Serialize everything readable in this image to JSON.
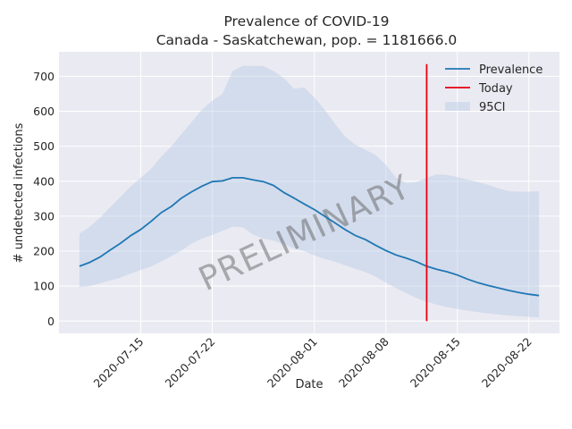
{
  "chart_data": {
    "type": "line",
    "title": "Prevalence of COVID-19",
    "subtitle": "Canada - Saskatchewan, pop. = 1181666.0",
    "xlabel": "Date",
    "ylabel": "# undetected infections",
    "x_start": "2020-07-09",
    "x_ticks": [
      "2020-07-15",
      "2020-07-22",
      "2020-08-01",
      "2020-08-08",
      "2020-08-15",
      "2020-08-22"
    ],
    "xlim": [
      "2020-07-07",
      "2020-08-25"
    ],
    "y_ticks": [
      0,
      100,
      200,
      300,
      400,
      500,
      600,
      700
    ],
    "ylim": [
      -35,
      770
    ],
    "grid": true,
    "legend_position": "top-right",
    "colors": {
      "prevalence": "#1f77b4",
      "today": "#e8000b",
      "ci": "#b7cbe4",
      "plot_bg": "#eaeaf2",
      "grid": "#ffffff"
    },
    "series": [
      {
        "name": "Prevalence",
        "x": [
          "2020-07-09",
          "2020-07-10",
          "2020-07-11",
          "2020-07-12",
          "2020-07-13",
          "2020-07-14",
          "2020-07-15",
          "2020-07-16",
          "2020-07-17",
          "2020-07-18",
          "2020-07-19",
          "2020-07-20",
          "2020-07-21",
          "2020-07-22",
          "2020-07-23",
          "2020-07-24",
          "2020-07-25",
          "2020-07-26",
          "2020-07-27",
          "2020-07-28",
          "2020-07-29",
          "2020-07-30",
          "2020-07-31",
          "2020-08-01",
          "2020-08-02",
          "2020-08-03",
          "2020-08-04",
          "2020-08-05",
          "2020-08-06",
          "2020-08-07",
          "2020-08-08",
          "2020-08-09",
          "2020-08-10",
          "2020-08-11",
          "2020-08-12",
          "2020-08-13",
          "2020-08-14",
          "2020-08-15",
          "2020-08-16",
          "2020-08-17",
          "2020-08-18",
          "2020-08-19",
          "2020-08-20",
          "2020-08-21",
          "2020-08-22",
          "2020-08-23"
        ],
        "values": [
          157,
          168,
          183,
          203,
          222,
          244,
          262,
          285,
          310,
          328,
          352,
          370,
          386,
          399,
          401,
          410,
          410,
          404,
          399,
          388,
          368,
          352,
          335,
          319,
          300,
          281,
          262,
          245,
          233,
          217,
          202,
          189,
          180,
          170,
          157,
          148,
          141,
          132,
          120,
          110,
          102,
          95,
          88,
          82,
          77,
          73
        ]
      },
      {
        "name": "95CI",
        "x": [
          "2020-07-09",
          "2020-07-10",
          "2020-07-11",
          "2020-07-12",
          "2020-07-13",
          "2020-07-14",
          "2020-07-15",
          "2020-07-16",
          "2020-07-17",
          "2020-07-18",
          "2020-07-19",
          "2020-07-20",
          "2020-07-21",
          "2020-07-22",
          "2020-07-23",
          "2020-07-24",
          "2020-07-25",
          "2020-07-26",
          "2020-07-27",
          "2020-07-28",
          "2020-07-29",
          "2020-07-30",
          "2020-07-31",
          "2020-08-01",
          "2020-08-02",
          "2020-08-03",
          "2020-08-04",
          "2020-08-05",
          "2020-08-06",
          "2020-08-07",
          "2020-08-08",
          "2020-08-09",
          "2020-08-10",
          "2020-08-11",
          "2020-08-12",
          "2020-08-13",
          "2020-08-14",
          "2020-08-15",
          "2020-08-16",
          "2020-08-17",
          "2020-08-18",
          "2020-08-19",
          "2020-08-20",
          "2020-08-21",
          "2020-08-22",
          "2020-08-23"
        ],
        "upper": [
          250,
          270,
          295,
          325,
          355,
          385,
          410,
          435,
          470,
          500,
          535,
          570,
          605,
          630,
          650,
          715,
          730,
          730,
          730,
          715,
          695,
          665,
          668,
          640,
          605,
          565,
          528,
          505,
          490,
          475,
          447,
          410,
          395,
          398,
          410,
          420,
          418,
          412,
          405,
          398,
          390,
          380,
          372,
          370,
          370,
          372
        ],
        "lower": [
          97,
          100,
          108,
          116,
          124,
          136,
          146,
          156,
          170,
          186,
          202,
          222,
          236,
          246,
          258,
          270,
          268,
          248,
          236,
          230,
          220,
          208,
          200,
          188,
          178,
          170,
          160,
          150,
          140,
          127,
          110,
          94,
          80,
          66,
          55,
          47,
          40,
          35,
          30,
          26,
          22,
          19,
          16,
          14,
          12,
          11
        ]
      }
    ],
    "today": "2020-08-12",
    "today_ymax": 735,
    "legend": [
      {
        "label": "Prevalence",
        "kind": "line"
      },
      {
        "label": "Today",
        "kind": "line"
      },
      {
        "label": "95CI",
        "kind": "patch"
      }
    ],
    "watermark": "PRELIMINARY"
  }
}
